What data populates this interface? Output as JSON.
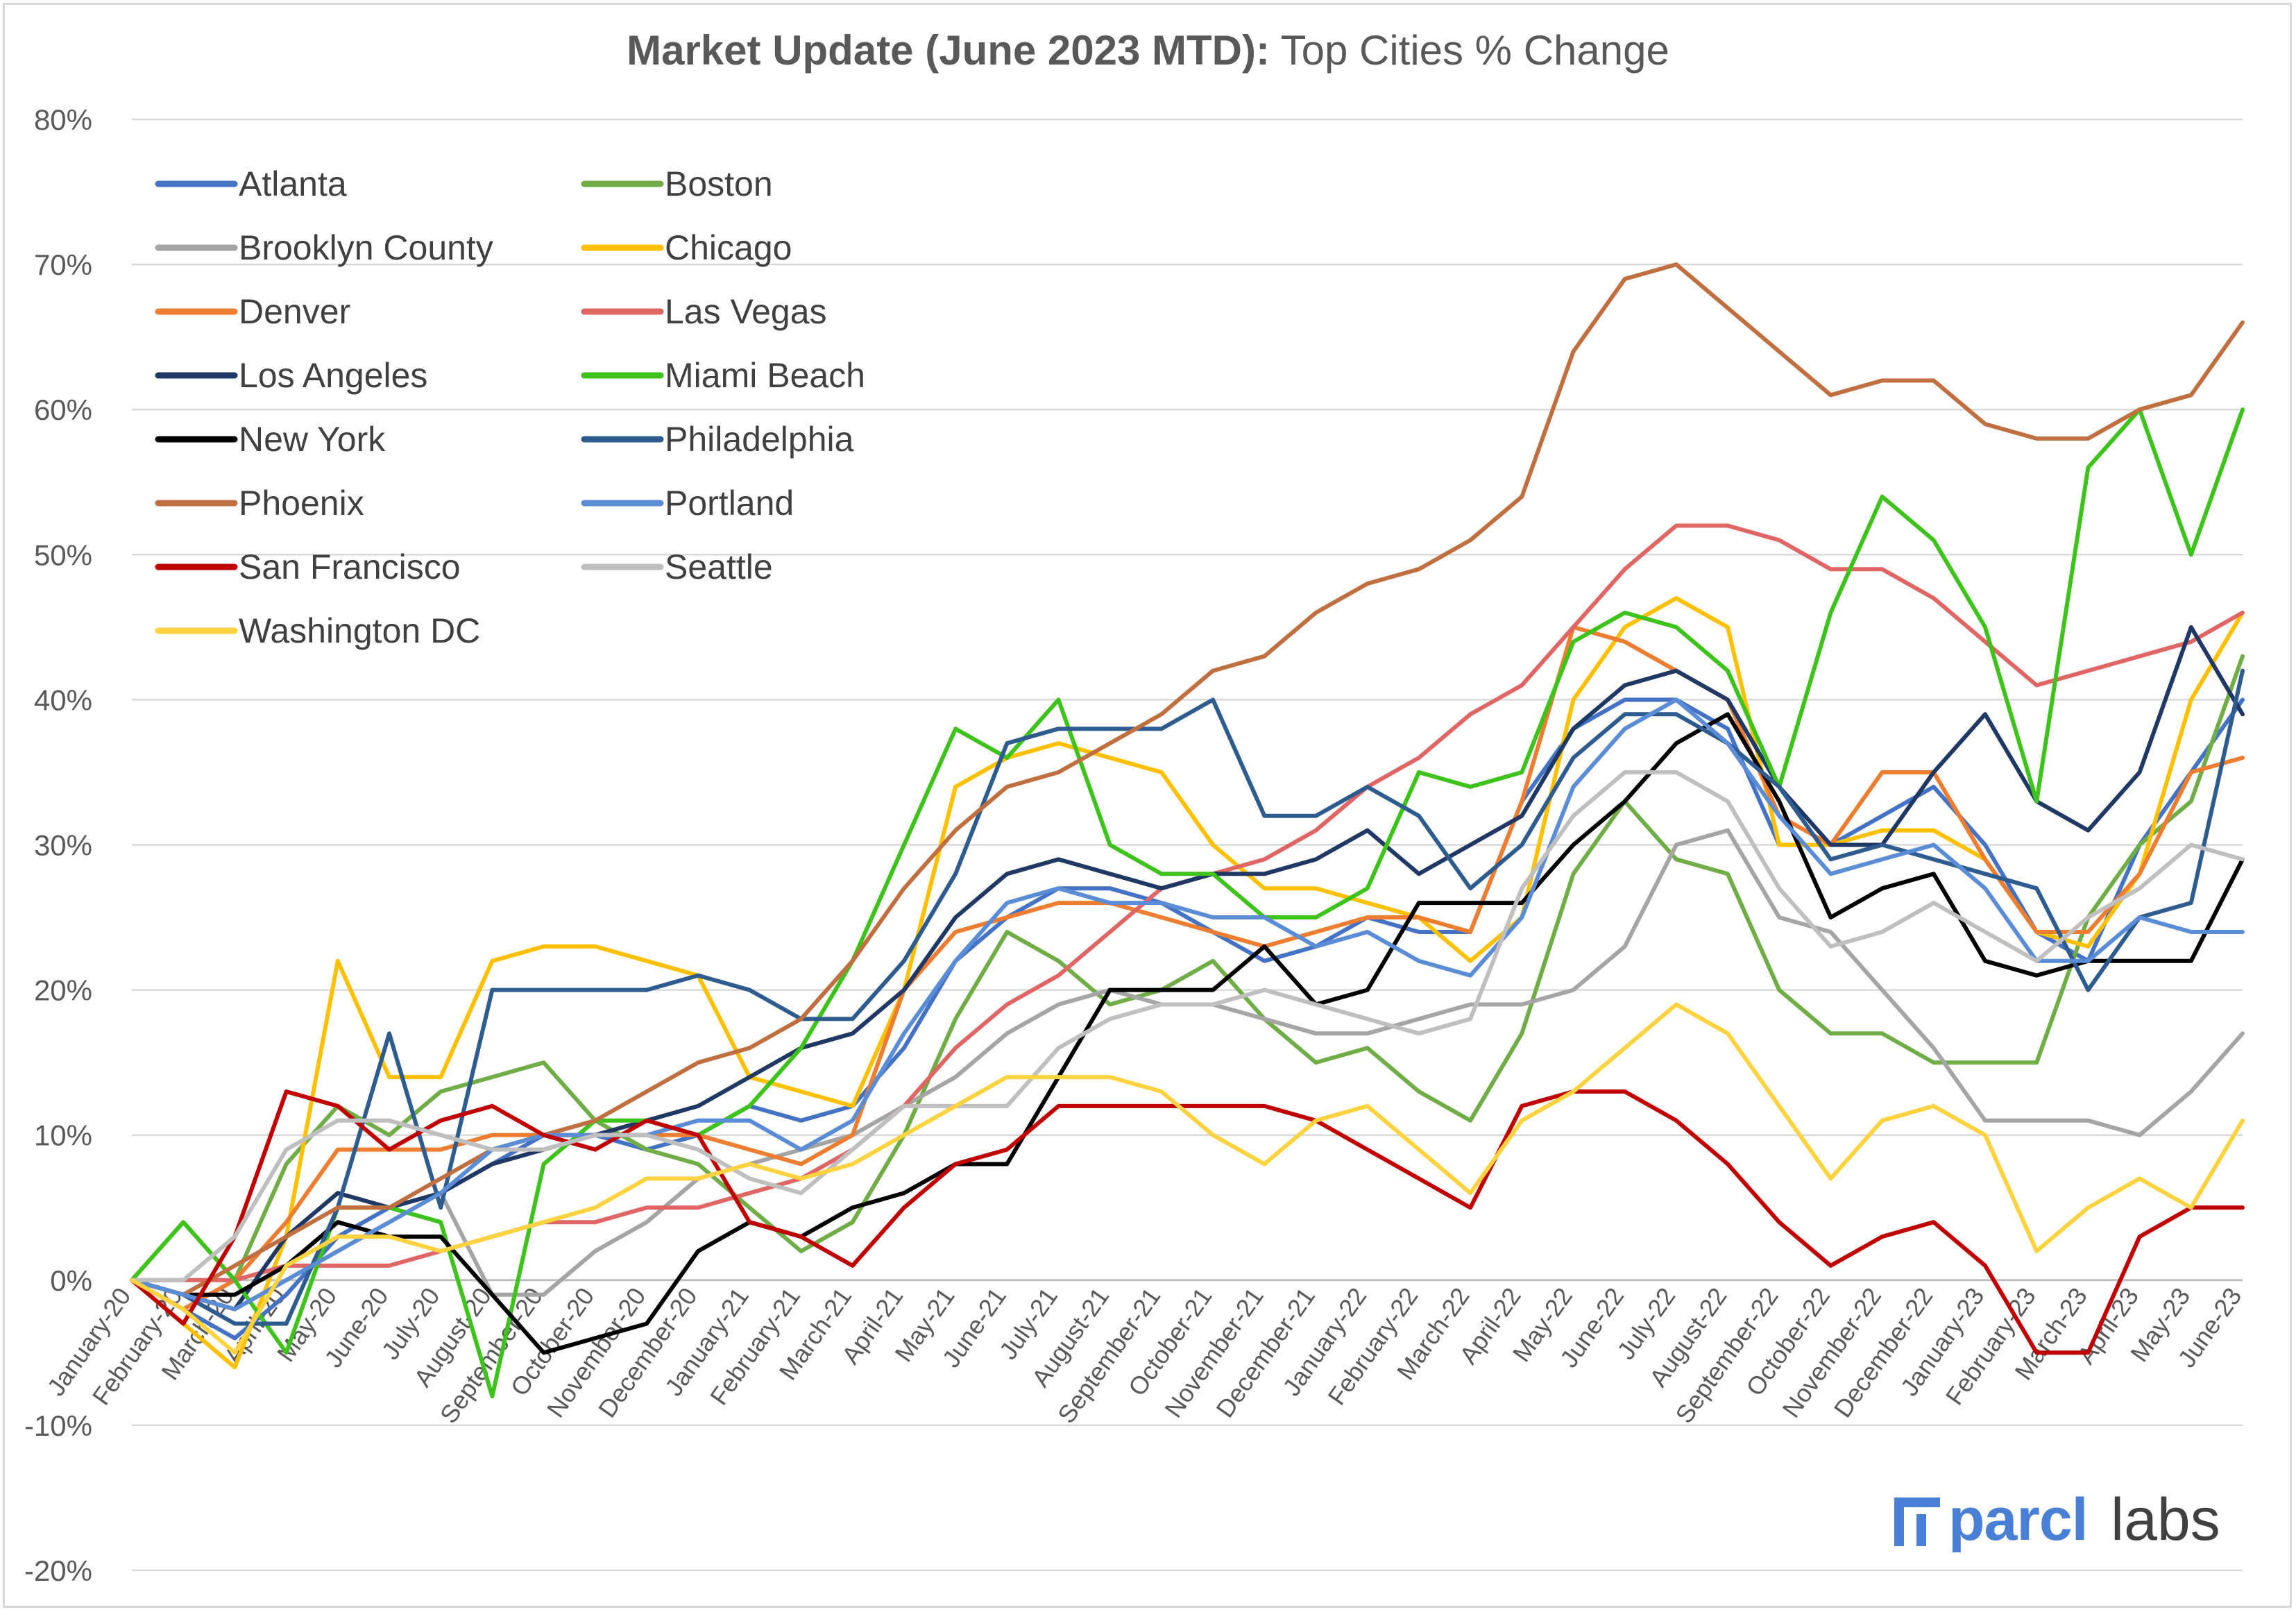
{
  "chart_data": {
    "type": "line",
    "title": "Market Update (June 2023 MTD):",
    "title_rest": "Top Cities % Change",
    "xlabel": "",
    "ylabel": "",
    "ylim": [
      -20,
      80
    ],
    "yticks": [
      {
        "value": 80,
        "label": "80%"
      },
      {
        "value": 70,
        "label": "70%"
      },
      {
        "value": 60,
        "label": "60%"
      },
      {
        "value": 50,
        "label": "50%"
      },
      {
        "value": 40,
        "label": "40%"
      },
      {
        "value": 30,
        "label": "30%"
      },
      {
        "value": 20,
        "label": "20%"
      },
      {
        "value": 10,
        "label": "10%"
      },
      {
        "value": 0,
        "label": "0%"
      },
      {
        "value": -10,
        "label": "-10%"
      },
      {
        "value": -20,
        "label": "-20%"
      }
    ],
    "categories": [
      "January-20",
      "February-20",
      "March-20",
      "April-20",
      "May-20",
      "June-20",
      "July-20",
      "August-20",
      "September-20",
      "October-20",
      "November-20",
      "December-20",
      "January-21",
      "February-21",
      "March-21",
      "April-21",
      "May-21",
      "June-21",
      "July-21",
      "August-21",
      "September-21",
      "October-21",
      "November-21",
      "December-21",
      "January-22",
      "February-22",
      "March-22",
      "April-22",
      "May-22",
      "June-22",
      "July-22",
      "August-22",
      "September-22",
      "October-22",
      "November-22",
      "December-22",
      "January-23",
      "February-23",
      "March-23",
      "April-23",
      "May-23",
      "June-23"
    ],
    "grid": true,
    "legend_position": "top-left",
    "series": [
      {
        "name": "Atlanta",
        "color": "#4472c4",
        "values": [
          0,
          -2,
          -4,
          -1,
          3,
          5,
          6,
          8,
          10,
          10,
          9,
          10,
          12,
          11,
          12,
          16,
          22,
          25,
          27,
          27,
          26,
          24,
          22,
          23,
          25,
          24,
          24,
          33,
          38,
          40,
          40,
          38,
          30,
          30,
          32,
          34,
          30,
          24,
          22,
          30,
          35,
          40
        ]
      },
      {
        "name": "Boston",
        "color": "#70ad47",
        "values": [
          0,
          4,
          0,
          8,
          12,
          10,
          13,
          14,
          15,
          11,
          9,
          8,
          5,
          2,
          4,
          10,
          18,
          24,
          22,
          19,
          20,
          22,
          18,
          15,
          16,
          13,
          11,
          17,
          28,
          33,
          29,
          28,
          20,
          17,
          17,
          15,
          15,
          15,
          25,
          30,
          33,
          43
        ]
      },
      {
        "name": "Brooklyn County",
        "color": "#a5a5a5",
        "values": [
          0,
          -1,
          -2,
          0,
          2,
          4,
          6,
          -1,
          -1,
          2,
          4,
          7,
          8,
          9,
          10,
          12,
          14,
          17,
          19,
          20,
          19,
          19,
          18,
          17,
          17,
          18,
          19,
          19,
          20,
          23,
          30,
          31,
          25,
          24,
          20,
          16,
          11,
          11,
          11,
          10,
          13,
          17
        ]
      },
      {
        "name": "Chicago",
        "color": "#ffc000",
        "values": [
          0,
          -3,
          -6,
          3,
          22,
          14,
          14,
          22,
          23,
          23,
          22,
          21,
          14,
          13,
          12,
          20,
          34,
          36,
          37,
          36,
          35,
          30,
          27,
          27,
          26,
          25,
          22,
          25,
          40,
          45,
          47,
          45,
          30,
          30,
          31,
          31,
          29,
          24,
          23,
          28,
          40,
          46
        ]
      },
      {
        "name": "Denver",
        "color": "#ed7d31",
        "values": [
          0,
          -2,
          0,
          4,
          9,
          9,
          9,
          10,
          10,
          10,
          10,
          10,
          9,
          8,
          10,
          20,
          24,
          25,
          26,
          26,
          25,
          24,
          23,
          24,
          25,
          25,
          24,
          33,
          45,
          44,
          42,
          40,
          32,
          30,
          35,
          35,
          29,
          24,
          24,
          28,
          35,
          36
        ]
      },
      {
        "name": "Las Vegas",
        "color": "#e06666",
        "values": [
          0,
          0,
          0,
          1,
          1,
          1,
          2,
          3,
          4,
          4,
          5,
          5,
          6,
          7,
          9,
          12,
          16,
          19,
          21,
          24,
          27,
          28,
          29,
          31,
          34,
          36,
          39,
          41,
          45,
          49,
          52,
          52,
          51,
          49,
          49,
          47,
          44,
          41,
          42,
          43,
          44,
          46
        ]
      },
      {
        "name": "Los Angeles",
        "color": "#203864",
        "values": [
          0,
          -1,
          -2,
          3,
          6,
          5,
          6,
          8,
          9,
          10,
          11,
          12,
          14,
          16,
          17,
          20,
          25,
          28,
          29,
          28,
          27,
          28,
          28,
          29,
          31,
          28,
          30,
          32,
          38,
          41,
          42,
          40,
          34,
          30,
          30,
          35,
          39,
          33,
          31,
          35,
          45,
          39
        ]
      },
      {
        "name": "Miami Beach",
        "color": "#3ec21c",
        "values": [
          0,
          4,
          0,
          -5,
          5,
          5,
          4,
          -8,
          8,
          11,
          11,
          10,
          12,
          16,
          22,
          30,
          38,
          36,
          40,
          30,
          28,
          28,
          25,
          25,
          27,
          35,
          34,
          35,
          44,
          46,
          45,
          42,
          34,
          46,
          54,
          51,
          45,
          33,
          56,
          60,
          50,
          60
        ]
      },
      {
        "name": "New York",
        "color": "#000000",
        "values": [
          0,
          -1,
          -1,
          1,
          4,
          3,
          3,
          -1,
          -5,
          -4,
          -3,
          2,
          4,
          3,
          5,
          6,
          8,
          8,
          14,
          20,
          20,
          20,
          23,
          19,
          20,
          26,
          26,
          26,
          30,
          33,
          37,
          39,
          33,
          25,
          27,
          28,
          22,
          21,
          22,
          22,
          22,
          29
        ]
      },
      {
        "name": "Philadelphia",
        "color": "#2e5c8f",
        "values": [
          0,
          -1,
          -3,
          -3,
          5,
          17,
          5,
          20,
          20,
          20,
          20,
          21,
          20,
          18,
          18,
          22,
          28,
          37,
          38,
          38,
          38,
          40,
          32,
          32,
          34,
          32,
          27,
          30,
          36,
          39,
          39,
          37,
          34,
          29,
          30,
          29,
          28,
          27,
          20,
          25,
          26,
          42
        ]
      },
      {
        "name": "Phoenix",
        "color": "#c07040",
        "values": [
          0,
          -1,
          1,
          3,
          5,
          5,
          7,
          9,
          10,
          11,
          13,
          15,
          16,
          18,
          22,
          27,
          31,
          34,
          35,
          37,
          39,
          42,
          43,
          46,
          48,
          49,
          51,
          54,
          64,
          69,
          70,
          67,
          64,
          61,
          62,
          62,
          59,
          58,
          58,
          60,
          61,
          66
        ]
      },
      {
        "name": "Portland",
        "color": "#5b8cd6",
        "values": [
          0,
          -1,
          -2,
          0,
          2,
          4,
          6,
          9,
          10,
          10,
          10,
          11,
          11,
          9,
          11,
          17,
          22,
          26,
          27,
          26,
          26,
          25,
          25,
          23,
          24,
          22,
          21,
          25,
          34,
          38,
          40,
          37,
          32,
          28,
          29,
          30,
          27,
          22,
          22,
          25,
          24,
          24
        ]
      },
      {
        "name": "San Francisco",
        "color": "#c00000",
        "values": [
          0,
          -3,
          3,
          13,
          12,
          9,
          11,
          12,
          10,
          9,
          11,
          10,
          4,
          3,
          1,
          5,
          8,
          9,
          12,
          12,
          12,
          12,
          12,
          11,
          9,
          7,
          5,
          12,
          13,
          13,
          11,
          8,
          4,
          1,
          3,
          4,
          1,
          -5,
          -5,
          3,
          5,
          5
        ]
      },
      {
        "name": "Seattle",
        "color": "#bfbfbf",
        "values": [
          0,
          0,
          3,
          9,
          11,
          11,
          10,
          9,
          9,
          10,
          10,
          9,
          7,
          6,
          9,
          12,
          12,
          12,
          16,
          18,
          19,
          19,
          20,
          19,
          18,
          17,
          18,
          27,
          32,
          35,
          35,
          33,
          27,
          23,
          24,
          26,
          24,
          22,
          25,
          27,
          30,
          29
        ]
      },
      {
        "name": "Washington DC",
        "color": "#ffd23f",
        "values": [
          0,
          -2,
          -5,
          1,
          3,
          3,
          2,
          3,
          4,
          5,
          7,
          7,
          8,
          7,
          8,
          10,
          12,
          14,
          14,
          14,
          13,
          10,
          8,
          11,
          12,
          9,
          6,
          11,
          13,
          16,
          19,
          17,
          12,
          7,
          11,
          12,
          10,
          2,
          5,
          7,
          5,
          11
        ]
      }
    ]
  },
  "logo": {
    "brand": "parcl",
    "suffix": "labs",
    "color": "#4a7fd6"
  }
}
